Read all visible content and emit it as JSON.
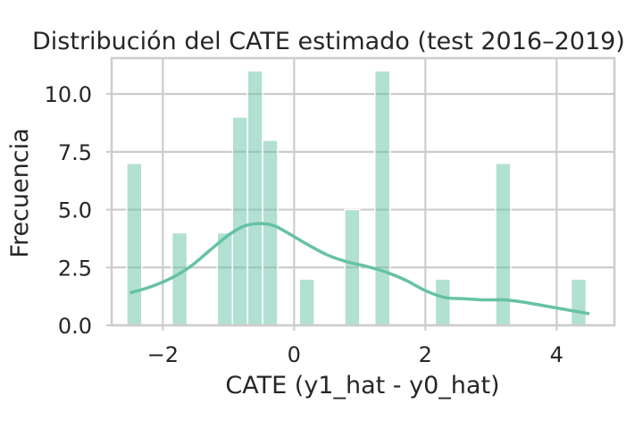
{
  "chart_data": {
    "type": "histogram",
    "title": "Distribución del CATE estimado (test 2016–2019)",
    "xlabel": "CATE (y1_hat - y0_hat)",
    "ylabel": "Frecuencia",
    "xlim": [
      -2.78,
      4.88
    ],
    "ylim": [
      0,
      11.55
    ],
    "x_ticks": [
      {
        "value": -2,
        "label": "−2"
      },
      {
        "value": 0,
        "label": "0"
      },
      {
        "value": 2,
        "label": "2"
      },
      {
        "value": 4,
        "label": "4"
      }
    ],
    "y_ticks": [
      {
        "value": 0,
        "label": "0.0"
      },
      {
        "value": 2.5,
        "label": "2.5"
      },
      {
        "value": 5,
        "label": "5.0"
      },
      {
        "value": 7.5,
        "label": "7.5"
      },
      {
        "value": 10,
        "label": "10.0"
      }
    ],
    "grid": true,
    "bin_width": 0.23,
    "bars": [
      {
        "x0": -2.55,
        "count": 7
      },
      {
        "x0": -1.86,
        "count": 4
      },
      {
        "x0": -1.17,
        "count": 4
      },
      {
        "x0": -0.94,
        "count": 9
      },
      {
        "x0": -0.71,
        "count": 11
      },
      {
        "x0": -0.48,
        "count": 8
      },
      {
        "x0": 0.08,
        "count": 2
      },
      {
        "x0": 0.77,
        "count": 5
      },
      {
        "x0": 1.23,
        "count": 11
      },
      {
        "x0": 2.15,
        "count": 2
      },
      {
        "x0": 3.07,
        "count": 7
      },
      {
        "x0": 4.22,
        "count": 2
      }
    ],
    "kde": {
      "x": [
        -2.5,
        -2.2,
        -1.9,
        -1.6,
        -1.3,
        -1.0,
        -0.75,
        -0.5,
        -0.3,
        -0.1,
        0.2,
        0.5,
        0.8,
        1.1,
        1.4,
        1.7,
        2.0,
        2.3,
        2.6,
        2.9,
        3.2,
        3.5,
        3.8,
        4.1,
        4.5
      ],
      "y": [
        1.4,
        1.65,
        2.0,
        2.5,
        3.2,
        3.9,
        4.3,
        4.4,
        4.3,
        4.0,
        3.5,
        3.05,
        2.75,
        2.55,
        2.3,
        1.95,
        1.5,
        1.2,
        1.15,
        1.1,
        1.1,
        1.0,
        0.85,
        0.7,
        0.5
      ]
    },
    "colors": {
      "bar": "#66c2a5",
      "bar_opacity": 0.5,
      "kde_line": "#66c2a5"
    }
  }
}
